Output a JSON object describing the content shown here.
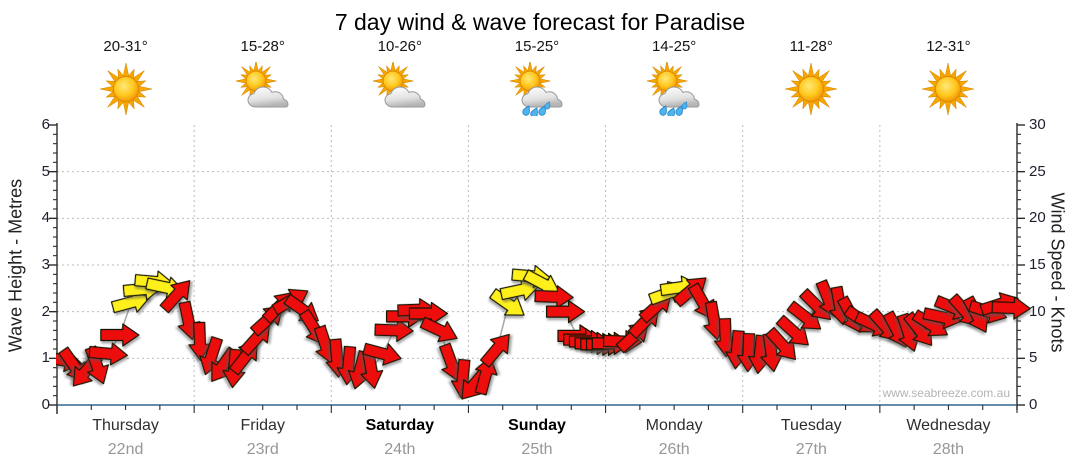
{
  "title": "7 day wind & wave forecast for Paradise",
  "watermark": "www.seabreeze.com.au",
  "colors": {
    "arrow_red": "#ee0a0a",
    "arrow_yellow": "#fff01e",
    "bottom_axis": "#336690",
    "grid": "#bdbdbd",
    "trend_line": "#a6a6a6",
    "sun": "#ffc81e",
    "rain_drop": "#4fb3f0"
  },
  "days": [
    {
      "name": "Thursday",
      "date": "22nd",
      "temp": "20-31°",
      "icon": "sun",
      "bold": false
    },
    {
      "name": "Friday",
      "date": "23rd",
      "temp": "15-28°",
      "icon": "sun-cloud",
      "bold": false
    },
    {
      "name": "Saturday",
      "date": "24th",
      "temp": "10-26°",
      "icon": "sun-cloud",
      "bold": true
    },
    {
      "name": "Sunday",
      "date": "25th",
      "temp": "15-25°",
      "icon": "sun-cloud-rain",
      "bold": true
    },
    {
      "name": "Monday",
      "date": "26th",
      "temp": "14-25°",
      "icon": "sun-cloud-rain",
      "bold": false
    },
    {
      "name": "Tuesday",
      "date": "27th",
      "temp": "11-28°",
      "icon": "sun",
      "bold": false
    },
    {
      "name": "Wednesday",
      "date": "28th",
      "temp": "12-31°",
      "icon": "sun",
      "bold": false
    }
  ],
  "chart_data": {
    "type": "line",
    "title": "7 day wind & wave forecast for Paradise",
    "marker": "wind-direction-arrow",
    "marker_colors": {
      "r": "moderate wind (red)",
      "y": "stronger wind (yellow)"
    },
    "axes": {
      "left": {
        "label": "Wave Height - Metres",
        "min": 0,
        "max": 6,
        "major_step": 1,
        "ticks": [
          "0",
          "1",
          "2",
          "3",
          "4",
          "5",
          "6"
        ]
      },
      "right": {
        "label": "Wind Speed - Knots",
        "min": 0,
        "max": 30,
        "major_step": 5,
        "ticks": [
          "0",
          "5",
          "10",
          "15",
          "20",
          "25",
          "30"
        ]
      },
      "x": {
        "categories": [
          "Thursday 22nd",
          "Friday 23rd",
          "Saturday 24th",
          "Sunday 25th",
          "Monday 26th",
          "Tuesday 27th",
          "Wednesday 28th"
        ]
      }
    },
    "grid": "dotted, horizontal every 5 knots, vertical at day boundaries",
    "points_format": [
      "day_index",
      "hour",
      "wind_knots",
      "arrow_dir_deg_cw_from_east",
      "color r|y"
    ],
    "points": [
      [
        0,
        0,
        4.8,
        10,
        "r"
      ],
      [
        0,
        2,
        4.2,
        55,
        "r"
      ],
      [
        0,
        4,
        3.6,
        130,
        "r"
      ],
      [
        0,
        6,
        4.2,
        70,
        "r"
      ],
      [
        0,
        8,
        5.5,
        5,
        "r"
      ],
      [
        0,
        10,
        7.5,
        0,
        "r"
      ],
      [
        0,
        12,
        11.0,
        -15,
        "y"
      ],
      [
        0,
        14,
        12.4,
        -5,
        "y"
      ],
      [
        0,
        16,
        13.2,
        5,
        "y"
      ],
      [
        0,
        18,
        12.6,
        12,
        "y"
      ],
      [
        0,
        20,
        11.8,
        -48,
        "r"
      ],
      [
        0,
        22,
        9.0,
        78,
        "r"
      ],
      [
        1,
        0,
        6.8,
        88,
        "r"
      ],
      [
        1,
        2,
        5.2,
        108,
        "r"
      ],
      [
        1,
        4,
        4.2,
        125,
        "r"
      ],
      [
        1,
        6,
        3.9,
        95,
        "r"
      ],
      [
        1,
        8,
        5.2,
        -52,
        "r"
      ],
      [
        1,
        10,
        7.2,
        -48,
        "r"
      ],
      [
        1,
        12,
        9.2,
        -42,
        "r"
      ],
      [
        1,
        14,
        10.6,
        -45,
        "r"
      ],
      [
        1,
        16,
        11.2,
        -30,
        "r"
      ],
      [
        1,
        18,
        10.2,
        35,
        "r"
      ],
      [
        1,
        20,
        8.2,
        58,
        "r"
      ],
      [
        1,
        22,
        6.4,
        72,
        "r"
      ],
      [
        2,
        0,
        5.0,
        85,
        "r"
      ],
      [
        2,
        2,
        4.2,
        95,
        "r"
      ],
      [
        2,
        4,
        3.7,
        105,
        "r"
      ],
      [
        2,
        6,
        3.8,
        80,
        "r"
      ],
      [
        2,
        8,
        5.5,
        15,
        "r"
      ],
      [
        2,
        10,
        8.0,
        2,
        "r"
      ],
      [
        2,
        12,
        9.5,
        0,
        "r"
      ],
      [
        2,
        14,
        10.2,
        -2,
        "r"
      ],
      [
        2,
        16,
        9.8,
        0,
        "r"
      ],
      [
        2,
        18,
        8.0,
        25,
        "r"
      ],
      [
        2,
        20,
        4.5,
        70,
        "r"
      ],
      [
        2,
        22,
        2.8,
        95,
        "r"
      ],
      [
        3,
        0,
        2.2,
        130,
        "r"
      ],
      [
        3,
        2,
        3.2,
        -75,
        "r"
      ],
      [
        3,
        4,
        6.0,
        -50,
        "r"
      ],
      [
        3,
        6,
        10.8,
        35,
        "y"
      ],
      [
        3,
        8,
        12.3,
        -12,
        "y"
      ],
      [
        3,
        10,
        13.8,
        5,
        "y"
      ],
      [
        3,
        12,
        13.0,
        28,
        "y"
      ],
      [
        3,
        14,
        11.6,
        2,
        "r"
      ],
      [
        3,
        16,
        10.0,
        0,
        "r"
      ],
      [
        3,
        18,
        7.4,
        0,
        "r"
      ],
      [
        3,
        19,
        7.0,
        0,
        "r"
      ],
      [
        3,
        20,
        6.8,
        0,
        "r"
      ],
      [
        3,
        21,
        6.6,
        0,
        "r"
      ],
      [
        3,
        22,
        6.5,
        0,
        "r"
      ],
      [
        3,
        23,
        6.5,
        0,
        "r"
      ],
      [
        4,
        0,
        6.6,
        0,
        "r"
      ],
      [
        4,
        2,
        6.8,
        2,
        "r"
      ],
      [
        4,
        4,
        7.4,
        -42,
        "r"
      ],
      [
        4,
        6,
        9.0,
        -46,
        "r"
      ],
      [
        4,
        8,
        10.6,
        -42,
        "r"
      ],
      [
        4,
        10,
        12.0,
        -20,
        "y"
      ],
      [
        4,
        12,
        12.6,
        -8,
        "y"
      ],
      [
        4,
        14,
        12.3,
        -40,
        "r"
      ],
      [
        4,
        16,
        11.0,
        60,
        "r"
      ],
      [
        4,
        18,
        9.0,
        80,
        "r"
      ],
      [
        4,
        20,
        7.2,
        88,
        "r"
      ],
      [
        4,
        22,
        5.9,
        95,
        "r"
      ],
      [
        5,
        0,
        5.6,
        92,
        "r"
      ],
      [
        5,
        2,
        5.4,
        96,
        "r"
      ],
      [
        5,
        4,
        5.6,
        82,
        "r"
      ],
      [
        5,
        6,
        6.4,
        48,
        "r"
      ],
      [
        5,
        8,
        7.8,
        42,
        "r"
      ],
      [
        5,
        10,
        9.4,
        38,
        "r"
      ],
      [
        5,
        12,
        10.6,
        45,
        "r"
      ],
      [
        5,
        14,
        11.3,
        68,
        "r"
      ],
      [
        5,
        16,
        10.6,
        80,
        "r"
      ],
      [
        5,
        18,
        9.6,
        62,
        "r"
      ],
      [
        5,
        20,
        9.0,
        35,
        "r"
      ],
      [
        5,
        22,
        8.6,
        25,
        "r"
      ],
      [
        6,
        0,
        8.4,
        48,
        "r"
      ],
      [
        6,
        2,
        8.0,
        62,
        "r"
      ],
      [
        6,
        4,
        7.7,
        72,
        "r"
      ],
      [
        6,
        6,
        8.0,
        52,
        "r"
      ],
      [
        6,
        8,
        8.6,
        32,
        "r"
      ],
      [
        6,
        10,
        9.4,
        12,
        "r"
      ],
      [
        6,
        12,
        10.4,
        22,
        "r"
      ],
      [
        6,
        14,
        10.0,
        48,
        "r"
      ],
      [
        6,
        16,
        9.6,
        62,
        "r"
      ],
      [
        6,
        18,
        10.0,
        18,
        "r"
      ],
      [
        6,
        20,
        10.8,
        -18,
        "r"
      ],
      [
        6,
        22,
        10.4,
        2,
        "r"
      ]
    ]
  }
}
